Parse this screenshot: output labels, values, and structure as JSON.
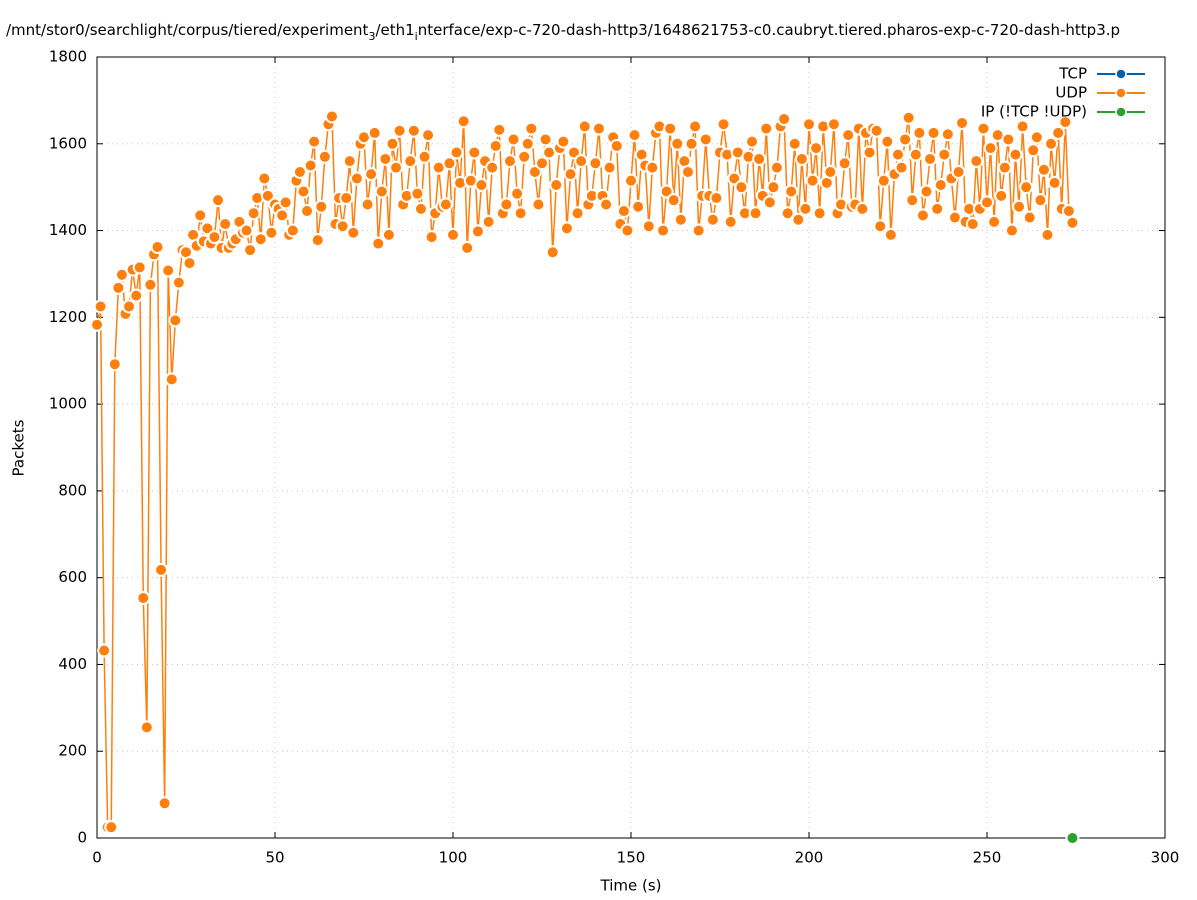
{
  "chart_data": {
    "type": "line",
    "title": [
      {
        "text": "/mnt/stor0/searchlight/corpus/tiered/experiment",
        "sub": false
      },
      {
        "text": "3",
        "sub": true
      },
      {
        "text": "/eth1",
        "sub": false
      },
      {
        "text": "i",
        "sub": true
      },
      {
        "text": "nterface/exp-c-720-dash-http3/1648621753-c0.caubryt.tiered.pharos-exp-c-720-dash-http3.p",
        "sub": false
      }
    ],
    "xlabel": "Time (s)",
    "ylabel": "Packets",
    "xlim": [
      0,
      300
    ],
    "xticks": [
      0,
      50,
      100,
      150,
      200,
      250,
      300
    ],
    "ylim": [
      0,
      1800
    ],
    "yticks": [
      0,
      200,
      400,
      600,
      800,
      1000,
      1200,
      1400,
      1600,
      1800
    ],
    "grid": true,
    "legend": "top-right",
    "series": [
      {
        "name": "TCP",
        "color": "#0060ad",
        "x": [],
        "values": []
      },
      {
        "name": "UDP",
        "color": "#ff7f0e",
        "x": [
          0,
          1,
          2,
          3,
          4,
          5,
          6,
          7,
          8,
          9,
          10,
          11,
          12,
          13,
          14,
          15,
          16,
          17,
          18,
          19,
          20,
          21,
          22,
          23,
          24,
          25,
          26,
          27,
          28,
          29,
          30,
          31,
          32,
          33,
          34,
          35,
          36,
          37,
          38,
          39,
          40,
          41,
          42,
          43,
          44,
          45,
          46,
          47,
          48,
          49,
          50,
          51,
          52,
          53,
          54,
          55,
          56,
          57,
          58,
          59,
          60,
          61,
          62,
          63,
          64,
          65,
          66,
          67,
          68,
          69,
          70,
          71,
          72,
          73,
          74,
          75,
          76,
          77,
          78,
          79,
          80,
          81,
          82,
          83,
          84,
          85,
          86,
          87,
          88,
          89,
          90,
          91,
          92,
          93,
          94,
          95,
          96,
          97,
          98,
          99,
          100,
          101,
          102,
          103,
          104,
          105,
          106,
          107,
          108,
          109,
          110,
          111,
          112,
          113,
          114,
          115,
          116,
          117,
          118,
          119,
          120,
          121,
          122,
          123,
          124,
          125,
          126,
          127,
          128,
          129,
          130,
          131,
          132,
          133,
          134,
          135,
          136,
          137,
          138,
          139,
          140,
          141,
          142,
          143,
          144,
          145,
          146,
          147,
          148,
          149,
          150,
          151,
          152,
          153,
          154,
          155,
          156,
          157,
          158,
          159,
          160,
          161,
          162,
          163,
          164,
          165,
          166,
          167,
          168,
          169,
          170,
          171,
          172,
          173,
          174,
          175,
          176,
          177,
          178,
          179,
          180,
          181,
          182,
          183,
          184,
          185,
          186,
          187,
          188,
          189,
          190,
          191,
          192,
          193,
          194,
          195,
          196,
          197,
          198,
          199,
          200,
          201,
          202,
          203,
          204,
          205,
          206,
          207,
          208,
          209,
          210,
          211,
          212,
          213,
          214,
          215,
          216,
          217,
          218,
          219,
          220,
          221,
          222,
          223,
          224,
          225,
          226,
          227,
          228,
          229,
          230,
          231,
          232,
          233,
          234,
          235,
          236,
          237,
          238,
          239,
          240,
          241,
          242,
          243,
          244,
          245,
          246,
          247,
          248,
          249,
          250,
          251,
          252,
          253,
          254,
          255,
          256,
          257,
          258,
          259,
          260,
          261,
          262,
          263,
          264,
          265,
          266,
          267,
          268,
          269,
          270,
          271,
          272,
          273,
          274
        ],
        "values": [
          1183,
          1225,
          432,
          25,
          25,
          1092,
          1268,
          1298,
          1208,
          1225,
          1310,
          1250,
          1315,
          553,
          255,
          1275,
          1345,
          1362,
          618,
          80,
          1308,
          1057,
          1193,
          1280,
          1355,
          1350,
          1325,
          1390,
          1365,
          1435,
          1375,
          1405,
          1370,
          1385,
          1470,
          1360,
          1415,
          1360,
          1370,
          1380,
          1420,
          1395,
          1400,
          1355,
          1440,
          1475,
          1380,
          1520,
          1480,
          1395,
          1460,
          1450,
          1435,
          1465,
          1390,
          1400,
          1515,
          1535,
          1490,
          1445,
          1550,
          1605,
          1378,
          1455,
          1570,
          1645,
          1663,
          1415,
          1475,
          1410,
          1475,
          1560,
          1395,
          1520,
          1600,
          1615,
          1460,
          1530,
          1625,
          1370,
          1490,
          1565,
          1390,
          1600,
          1545,
          1630,
          1460,
          1480,
          1560,
          1630,
          1485,
          1450,
          1570,
          1620,
          1385,
          1440,
          1545,
          1455,
          1460,
          1555,
          1390,
          1580,
          1510,
          1652,
          1360,
          1515,
          1580,
          1398,
          1505,
          1560,
          1420,
          1545,
          1595,
          1632,
          1440,
          1460,
          1560,
          1610,
          1485,
          1440,
          1570,
          1600,
          1635,
          1535,
          1460,
          1555,
          1610,
          1580,
          1350,
          1505,
          1590,
          1605,
          1405,
          1530,
          1580,
          1440,
          1560,
          1640,
          1460,
          1480,
          1555,
          1635,
          1480,
          1460,
          1545,
          1615,
          1595,
          1415,
          1445,
          1400,
          1515,
          1620,
          1455,
          1575,
          1550,
          1410,
          1545,
          1625,
          1640,
          1400,
          1490,
          1635,
          1470,
          1600,
          1425,
          1560,
          1535,
          1600,
          1640,
          1400,
          1480,
          1610,
          1480,
          1425,
          1475,
          1580,
          1645,
          1575,
          1420,
          1520,
          1580,
          1500,
          1440,
          1570,
          1605,
          1440,
          1565,
          1480,
          1635,
          1465,
          1500,
          1545,
          1640,
          1657,
          1440,
          1490,
          1600,
          1425,
          1565,
          1450,
          1645,
          1515,
          1590,
          1440,
          1640,
          1510,
          1535,
          1645,
          1440,
          1460,
          1555,
          1620,
          1455,
          1460,
          1635,
          1450,
          1625,
          1580,
          1635,
          1630,
          1410,
          1515,
          1605,
          1390,
          1530,
          1575,
          1545,
          1610,
          1660,
          1470,
          1575,
          1625,
          1435,
          1490,
          1565,
          1625,
          1450,
          1505,
          1575,
          1622,
          1520,
          1430,
          1535,
          1648,
          1420,
          1450,
          1415,
          1560,
          1450,
          1635,
          1465,
          1590,
          1420,
          1620,
          1480,
          1545,
          1610,
          1400,
          1575,
          1455,
          1640,
          1500,
          1430,
          1585,
          1615,
          1470,
          1540,
          1390,
          1600,
          1510,
          1625,
          1450,
          1650,
          1445,
          1418
        ]
      },
      {
        "name": "IP (!TCP !UDP)",
        "color": "#2ca02c",
        "x": [
          274
        ],
        "values": [
          0
        ]
      }
    ]
  }
}
